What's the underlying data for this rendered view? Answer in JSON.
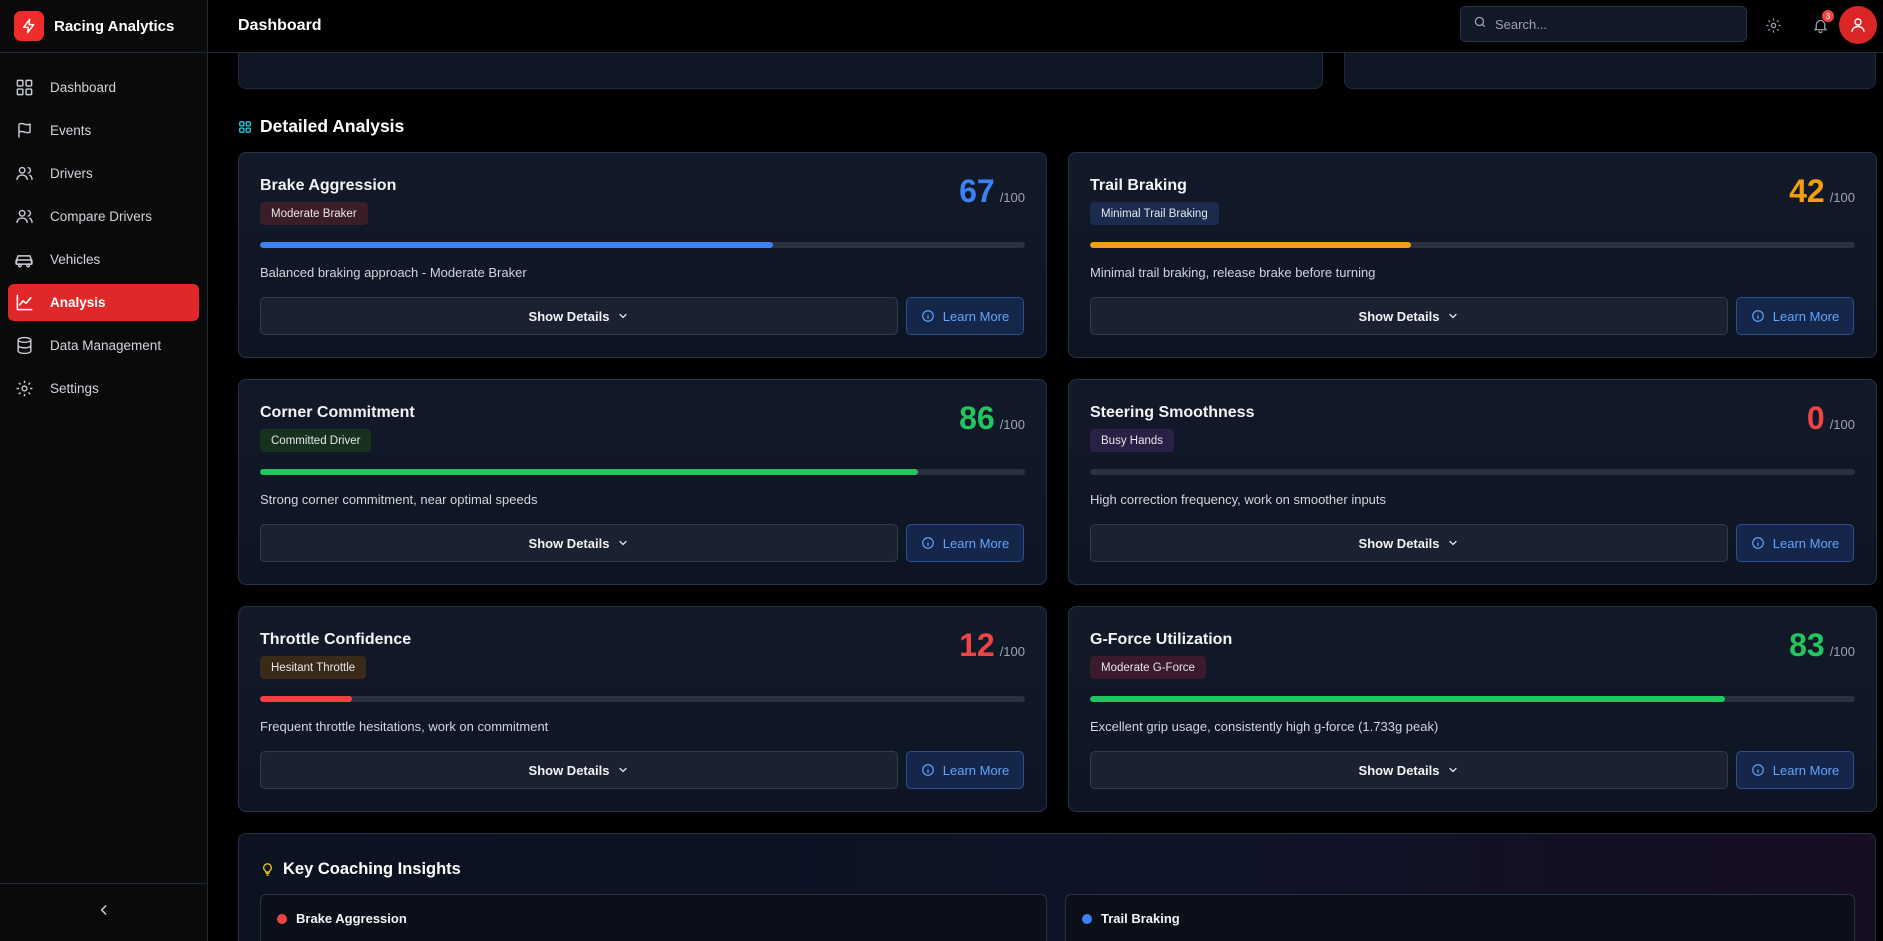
{
  "app": {
    "name": "Racing Analytics"
  },
  "header": {
    "title": "Dashboard",
    "search_placeholder": "Search...",
    "notification_count": "3"
  },
  "sidebar": {
    "items": [
      {
        "label": "Dashboard",
        "icon": "grid-icon",
        "active": false
      },
      {
        "label": "Events",
        "icon": "flag-icon",
        "active": false
      },
      {
        "label": "Drivers",
        "icon": "users-icon",
        "active": false
      },
      {
        "label": "Compare Drivers",
        "icon": "users-icon",
        "active": false
      },
      {
        "label": "Vehicles",
        "icon": "car-icon",
        "active": false
      },
      {
        "label": "Analysis",
        "icon": "chart-line-icon",
        "active": true
      },
      {
        "label": "Data Management",
        "icon": "database-icon",
        "active": false
      },
      {
        "label": "Settings",
        "icon": "gear-icon",
        "active": false
      }
    ]
  },
  "section": {
    "title": "Detailed Analysis"
  },
  "buttons": {
    "show_details": "Show Details",
    "learn_more": "Learn More"
  },
  "cards": [
    {
      "title": "Brake Aggression",
      "badge": "Moderate Braker",
      "score": "67",
      "max": "/100",
      "fraction": 0.67,
      "color": "#3b82f6",
      "badge_bg": "#3b1d28",
      "description": "Balanced braking approach - Moderate Braker"
    },
    {
      "title": "Trail Braking",
      "badge": "Minimal Trail Braking",
      "score": "42",
      "max": "/100",
      "fraction": 0.42,
      "color": "#f59e0b",
      "badge_bg": "#1b2b4d",
      "description": "Minimal trail braking, release brake before turning"
    },
    {
      "title": "Corner Commitment",
      "badge": "Committed Driver",
      "score": "86",
      "max": "/100",
      "fraction": 0.86,
      "color": "#22c55e",
      "badge_bg": "#16321f",
      "description": "Strong corner commitment, near optimal speeds"
    },
    {
      "title": "Steering Smoothness",
      "badge": "Busy Hands",
      "score": "0",
      "max": "/100",
      "fraction": 0.0,
      "color": "#ef4444",
      "badge_bg": "#2a1f44",
      "description": "High correction frequency, work on smoother inputs"
    },
    {
      "title": "Throttle Confidence",
      "badge": "Hesitant Throttle",
      "score": "12",
      "max": "/100",
      "fraction": 0.12,
      "color": "#ef4444",
      "badge_bg": "#3a2a1a",
      "description": "Frequent throttle hesitations, work on commitment"
    },
    {
      "title": "G-Force Utilization",
      "badge": "Moderate G-Force",
      "score": "83",
      "max": "/100",
      "fraction": 0.83,
      "color": "#22c55e",
      "badge_bg": "#3a1a2c",
      "description": "Excellent grip usage, consistently high g-force (1.733g peak)"
    }
  ],
  "insights": {
    "title": "Key Coaching Insights",
    "items": [
      {
        "label": "Brake Aggression",
        "color": "#ef4444"
      },
      {
        "label": "Trail Braking",
        "color": "#3b82f6"
      }
    ]
  }
}
